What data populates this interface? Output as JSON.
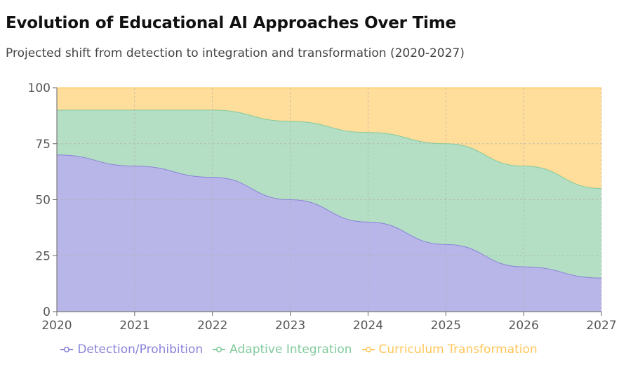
{
  "header": {
    "title": "Evolution of Educational AI Approaches Over Time",
    "subtitle": "Projected shift from detection to integration and transformation (2020-2027)"
  },
  "chart_data": {
    "type": "area",
    "stacked": true,
    "x": [
      "2020",
      "2021",
      "2022",
      "2023",
      "2024",
      "2025",
      "2026",
      "2027"
    ],
    "ylim": [
      0,
      100
    ],
    "yticks": [
      0,
      25,
      50,
      75,
      100
    ],
    "grid": true,
    "legend_position": "bottom",
    "series": [
      {
        "name": "Detection/Prohibition",
        "values": [
          70,
          65,
          60,
          50,
          40,
          30,
          20,
          15
        ],
        "color": "#8884d8"
      },
      {
        "name": "Adaptive Integration",
        "values": [
          20,
          25,
          30,
          35,
          40,
          45,
          45,
          40
        ],
        "color": "#82ca9d"
      },
      {
        "name": "Curriculum Transformation",
        "values": [
          10,
          10,
          10,
          15,
          20,
          25,
          35,
          45
        ],
        "color": "#ffc658"
      }
    ]
  }
}
